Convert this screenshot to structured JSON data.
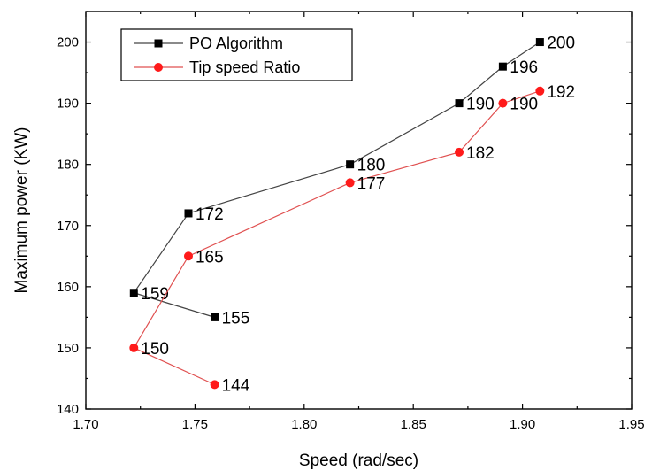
{
  "chart_data": {
    "type": "line",
    "xlabel": "Speed (rad/sec)",
    "ylabel": "Maximum power (KW)",
    "xlim": [
      1.7,
      1.95
    ],
    "ylim": [
      140,
      205
    ],
    "xticks": [
      "1.70",
      "1.75",
      "1.80",
      "1.85",
      "1.90",
      "1.95"
    ],
    "yticks": [
      "140",
      "150",
      "160",
      "170",
      "180",
      "190",
      "200"
    ],
    "legend_position": "top-left",
    "series": [
      {
        "name": "PO Algorithm",
        "color": "#444444",
        "marker": "square",
        "marker_color": "#000000",
        "x": [
          1.759,
          1.722,
          1.747,
          1.821,
          1.871,
          1.891,
          1.908
        ],
        "y": [
          155,
          159,
          172,
          180,
          190,
          196,
          200
        ],
        "labels": [
          "155",
          "159",
          "172",
          "180",
          "190",
          "196",
          "200"
        ]
      },
      {
        "name": "Tip speed Ratio",
        "color": "#e05050",
        "marker": "circle",
        "marker_color": "#ff1a1a",
        "x": [
          1.759,
          1.722,
          1.747,
          1.821,
          1.871,
          1.891,
          1.908
        ],
        "y": [
          144,
          150,
          165,
          177,
          182,
          190,
          192
        ],
        "labels": [
          "144",
          "150",
          "165",
          "177",
          "182",
          "190",
          "192"
        ]
      }
    ]
  }
}
